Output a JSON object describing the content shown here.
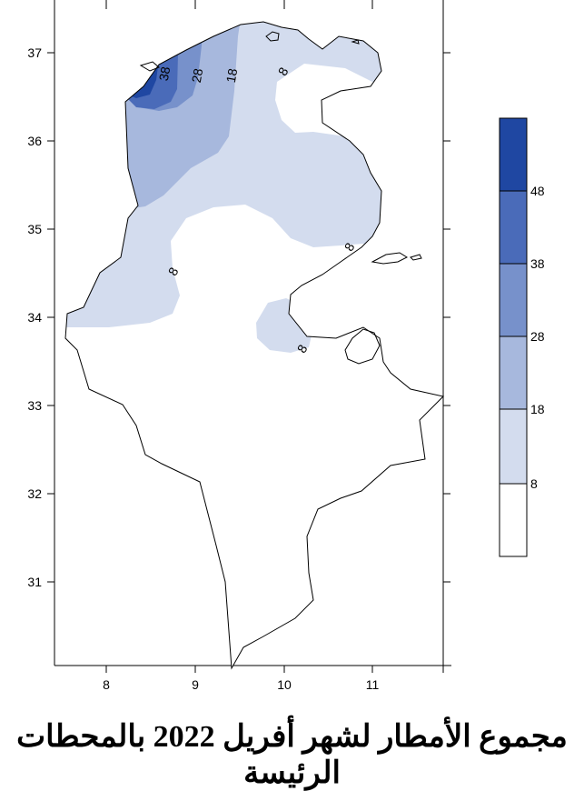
{
  "title": "مجموع الأمطار لشهر أفريل 2022 بالمحطات الرئيسة",
  "x_ticks": [
    "8",
    "9",
    "10",
    "11"
  ],
  "y_ticks": [
    "37",
    "36",
    "35",
    "34",
    "33",
    "32",
    "31"
  ],
  "contour_labels": [
    "38",
    "28",
    "18",
    "8",
    "8",
    "8",
    "8"
  ],
  "legend": {
    "labels": [
      "48",
      "38",
      "28",
      "18",
      "8"
    ],
    "colors": [
      "#1f47a2",
      "#4a6bb9",
      "#7791cb",
      "#a7b8dd",
      "#d3dcee",
      "#ffffff"
    ]
  },
  "chart_data": {
    "type": "heatmap",
    "title": "مجموع الأمطار لشهر أفريل 2022 بالمحطات الرئيسة",
    "x_range": [
      7.45,
      11.8
    ],
    "y_range": [
      30.1,
      37.55
    ],
    "levels": [
      8,
      18,
      28,
      38,
      48
    ],
    "contour_label_values": [
      38,
      28,
      18,
      8,
      8,
      8,
      8
    ]
  }
}
